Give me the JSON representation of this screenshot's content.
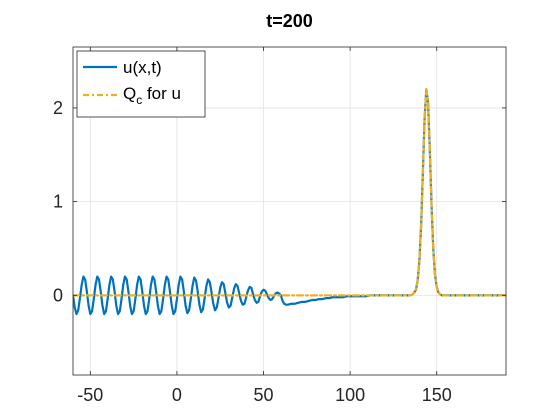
{
  "chart_data": {
    "type": "line",
    "title": "t=200",
    "xlabel": "",
    "ylabel": "",
    "xlim": [
      -60,
      190
    ],
    "ylim": [
      -0.85,
      2.65
    ],
    "xticks": [
      -50,
      0,
      50,
      100,
      150
    ],
    "xtick_labels": [
      "-50",
      "0",
      "50",
      "100",
      "150"
    ],
    "yticks": [
      0,
      1,
      2
    ],
    "ytick_labels": [
      "0",
      "1",
      "2"
    ],
    "grid": true,
    "legend_position": "top-left",
    "series": [
      {
        "name": "u(x,t)",
        "color": "#0072BD",
        "style": "solid",
        "points": [
          [
            -60,
            0
          ],
          [
            -59,
            -0.13
          ],
          [
            -58,
            -0.2
          ],
          [
            -57,
            -0.16
          ],
          [
            -56,
            -0.03
          ],
          [
            -55,
            0.11
          ],
          [
            -54,
            0.2
          ],
          [
            -53,
            0.17
          ],
          [
            -52,
            0.04
          ],
          [
            -51,
            -0.11
          ],
          [
            -50,
            -0.2
          ],
          [
            -49,
            -0.17
          ],
          [
            -48,
            -0.04
          ],
          [
            -47,
            0.11
          ],
          [
            -46,
            0.2
          ],
          [
            -45,
            0.17
          ],
          [
            -44,
            0.04
          ],
          [
            -43,
            -0.11
          ],
          [
            -42,
            -0.2
          ],
          [
            -41,
            -0.17
          ],
          [
            -40,
            -0.04
          ],
          [
            -39,
            0.11
          ],
          [
            -38,
            0.2
          ],
          [
            -37,
            0.17
          ],
          [
            -36,
            0.04
          ],
          [
            -35,
            -0.11
          ],
          [
            -34,
            -0.2
          ],
          [
            -33,
            -0.17
          ],
          [
            -32,
            -0.04
          ],
          [
            -31,
            0.11
          ],
          [
            -30,
            0.2
          ],
          [
            -29,
            0.17
          ],
          [
            -28,
            0.04
          ],
          [
            -27,
            -0.11
          ],
          [
            -26,
            -0.2
          ],
          [
            -25,
            -0.17
          ],
          [
            -24,
            -0.04
          ],
          [
            -23,
            0.11
          ],
          [
            -22,
            0.2
          ],
          [
            -21,
            0.17
          ],
          [
            -20,
            0.04
          ],
          [
            -19,
            -0.11
          ],
          [
            -18,
            -0.2
          ],
          [
            -17,
            -0.17
          ],
          [
            -16,
            -0.04
          ],
          [
            -15,
            0.11
          ],
          [
            -14,
            0.2
          ],
          [
            -13,
            0.17
          ],
          [
            -12,
            0.04
          ],
          [
            -11,
            -0.11
          ],
          [
            -10,
            -0.2
          ],
          [
            -9,
            -0.17
          ],
          [
            -8,
            -0.04
          ],
          [
            -7,
            0.11
          ],
          [
            -6,
            0.2
          ],
          [
            -5,
            0.17
          ],
          [
            -4,
            0.04
          ],
          [
            -3,
            -0.11
          ],
          [
            -2,
            -0.2
          ],
          [
            -1,
            -0.17
          ],
          [
            0,
            -0.04
          ],
          [
            1,
            0.11
          ],
          [
            2,
            0.2
          ],
          [
            3,
            0.17
          ],
          [
            4,
            0.04
          ],
          [
            5,
            -0.11
          ],
          [
            6,
            -0.19
          ],
          [
            7,
            -0.16
          ],
          [
            8,
            -0.04
          ],
          [
            9,
            0.1
          ],
          [
            10,
            0.19
          ],
          [
            11,
            0.16
          ],
          [
            12,
            0.04
          ],
          [
            13,
            -0.1
          ],
          [
            14,
            -0.18
          ],
          [
            15,
            -0.15
          ],
          [
            16,
            -0.03
          ],
          [
            17,
            0.1
          ],
          [
            18,
            0.17
          ],
          [
            19,
            0.14
          ],
          [
            20,
            0.03
          ],
          [
            21,
            -0.09
          ],
          [
            22,
            -0.16
          ],
          [
            23,
            -0.13
          ],
          [
            24,
            -0.03
          ],
          [
            25,
            0.08
          ],
          [
            26,
            0.14
          ],
          [
            27,
            0.12
          ],
          [
            28,
            0.02
          ],
          [
            29,
            -0.08
          ],
          [
            30,
            -0.13
          ],
          [
            31,
            -0.11
          ],
          [
            32,
            -0.02
          ],
          [
            33,
            0.07
          ],
          [
            34,
            0.12
          ],
          [
            35,
            0.1
          ],
          [
            36,
            0.02
          ],
          [
            37,
            -0.06
          ],
          [
            38,
            -0.1
          ],
          [
            39,
            -0.09
          ],
          [
            40,
            -0.02
          ],
          [
            41,
            0.05
          ],
          [
            42,
            0.09
          ],
          [
            43,
            0.08
          ],
          [
            44,
            0.01
          ],
          [
            45,
            -0.05
          ],
          [
            46,
            -0.08
          ],
          [
            47,
            -0.07
          ],
          [
            48,
            -0.01
          ],
          [
            49,
            0.04
          ],
          [
            50,
            0.06
          ],
          [
            51,
            0.05
          ],
          [
            52,
            0.01
          ],
          [
            53,
            -0.03
          ],
          [
            54,
            -0.05
          ],
          [
            55,
            -0.04
          ],
          [
            56,
            -0.01
          ],
          [
            57,
            0.02
          ],
          [
            58,
            0.03
          ],
          [
            59,
            0.02
          ],
          [
            60,
            0
          ],
          [
            61,
            -0.06
          ],
          [
            62,
            -0.09
          ],
          [
            63,
            -0.1
          ],
          [
            64,
            -0.1
          ],
          [
            66,
            -0.09
          ],
          [
            68,
            -0.09
          ],
          [
            70,
            -0.08
          ],
          [
            72,
            -0.07
          ],
          [
            74,
            -0.07
          ],
          [
            76,
            -0.06
          ],
          [
            78,
            -0.05
          ],
          [
            80,
            -0.05
          ],
          [
            82,
            -0.04
          ],
          [
            84,
            -0.04
          ],
          [
            86,
            -0.03
          ],
          [
            88,
            -0.03
          ],
          [
            90,
            -0.02
          ],
          [
            92,
            -0.02
          ],
          [
            94,
            -0.02
          ],
          [
            96,
            -0.02
          ],
          [
            98,
            -0.01
          ],
          [
            100,
            -0.01
          ],
          [
            103,
            -0.01
          ],
          [
            106,
            -0.01
          ],
          [
            109,
            -0.01
          ],
          [
            112,
            0
          ],
          [
            115,
            0
          ],
          [
            118,
            0
          ],
          [
            121,
            0
          ],
          [
            124,
            0
          ],
          [
            127,
            0
          ],
          [
            130,
            0
          ],
          [
            132,
            0
          ],
          [
            134,
            0
          ],
          [
            135,
            0
          ],
          [
            136,
            0.01
          ],
          [
            137,
            0.03
          ],
          [
            138,
            0.06
          ],
          [
            139,
            0.16
          ],
          [
            140,
            0.37
          ],
          [
            141,
            0.75
          ],
          [
            142,
            1.31
          ],
          [
            143,
            1.89
          ],
          [
            144,
            2.2
          ],
          [
            145,
            2.06
          ],
          [
            146,
            1.56
          ],
          [
            147,
            0.97
          ],
          [
            148,
            0.5
          ],
          [
            149,
            0.22
          ],
          [
            150,
            0.09
          ],
          [
            151,
            0.03
          ],
          [
            152,
            0.01
          ],
          [
            153,
            0
          ],
          [
            154,
            0
          ],
          [
            155,
            0
          ],
          [
            157,
            0
          ],
          [
            160,
            0
          ],
          [
            165,
            0
          ],
          [
            170,
            0
          ],
          [
            175,
            0
          ],
          [
            180,
            0
          ],
          [
            185,
            0
          ],
          [
            190,
            0
          ]
        ]
      },
      {
        "name": "Q_c for u",
        "color": "#EDB120",
        "style": "dash-dot",
        "points": [
          [
            -60,
            0
          ],
          [
            -30,
            0
          ],
          [
            0,
            0
          ],
          [
            30,
            0
          ],
          [
            60,
            0
          ],
          [
            90,
            0
          ],
          [
            120,
            0
          ],
          [
            130,
            0
          ],
          [
            134,
            0
          ],
          [
            135,
            0
          ],
          [
            136,
            0.01
          ],
          [
            137,
            0.03
          ],
          [
            138,
            0.07
          ],
          [
            139,
            0.16
          ],
          [
            140,
            0.37
          ],
          [
            141,
            0.75
          ],
          [
            142,
            1.31
          ],
          [
            143,
            1.89
          ],
          [
            144,
            2.2
          ],
          [
            145,
            2.06
          ],
          [
            146,
            1.56
          ],
          [
            147,
            0.97
          ],
          [
            148,
            0.5
          ],
          [
            149,
            0.22
          ],
          [
            150,
            0.08
          ],
          [
            151,
            0.03
          ],
          [
            152,
            0.01
          ],
          [
            153,
            0
          ],
          [
            154,
            0
          ],
          [
            156,
            0
          ],
          [
            160,
            0
          ],
          [
            170,
            0
          ],
          [
            180,
            0
          ],
          [
            190,
            0
          ]
        ]
      }
    ],
    "legend": {
      "entries": [
        {
          "label": "u(x,t)",
          "color": "#0072BD",
          "style": "solid"
        },
        {
          "label_main": "Q",
          "label_sub": "c",
          "label_rest": " for u",
          "color": "#EDB120",
          "style": "dash-dot"
        }
      ]
    }
  }
}
